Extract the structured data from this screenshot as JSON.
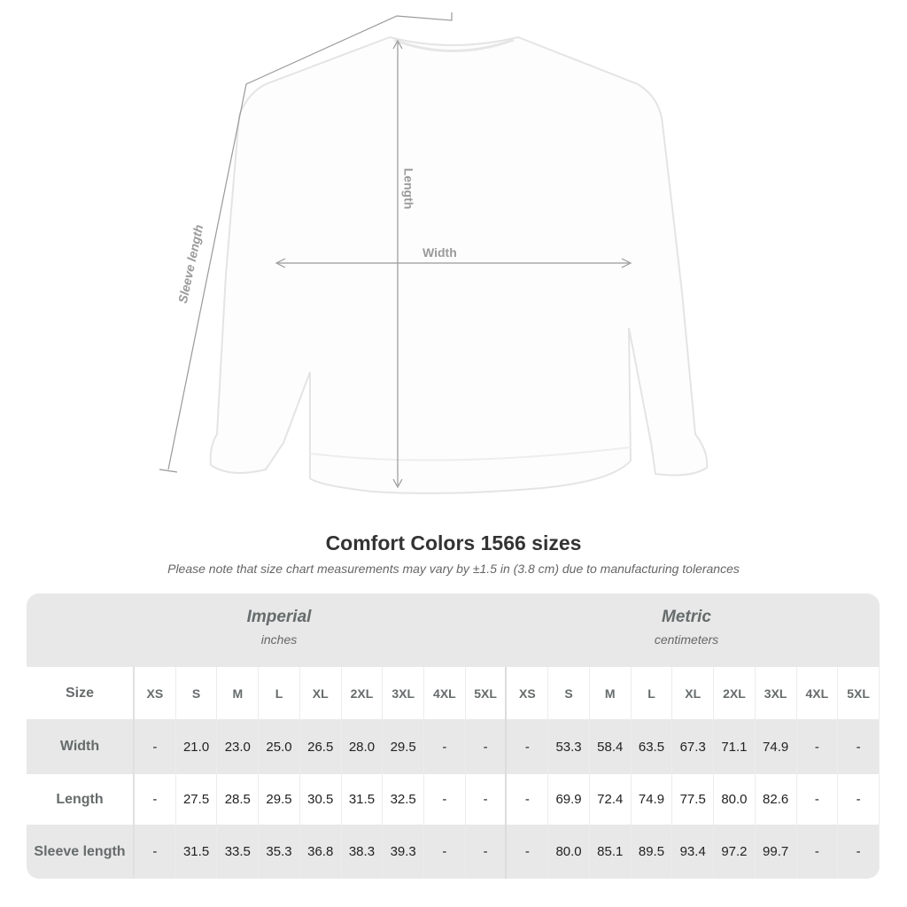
{
  "diagram": {
    "labels": {
      "length": "Length",
      "width": "Width",
      "sleeve": "Sleeve length"
    }
  },
  "title": "Comfort Colors 1566 sizes",
  "note": "Please note that size chart measurements may vary by ±1.5 in (3.8 cm) due to manufacturing tolerances",
  "table": {
    "imperial": {
      "heading": "Imperial",
      "unit": "inches"
    },
    "metric": {
      "heading": "Metric",
      "unit": "centimeters"
    },
    "size_label": "Size",
    "sizes": [
      "XS",
      "S",
      "M",
      "L",
      "XL",
      "2XL",
      "3XL",
      "4XL",
      "5XL"
    ],
    "rows": [
      {
        "label": "Width",
        "imperial": [
          "-",
          "21.0",
          "23.0",
          "25.0",
          "26.5",
          "28.0",
          "29.5",
          "-",
          "-"
        ],
        "metric": [
          "-",
          "53.3",
          "58.4",
          "63.5",
          "67.3",
          "71.1",
          "74.9",
          "-",
          "-"
        ]
      },
      {
        "label": "Length",
        "imperial": [
          "-",
          "27.5",
          "28.5",
          "29.5",
          "30.5",
          "31.5",
          "32.5",
          "-",
          "-"
        ],
        "metric": [
          "-",
          "69.9",
          "72.4",
          "74.9",
          "77.5",
          "80.0",
          "82.6",
          "-",
          "-"
        ]
      },
      {
        "label": "Sleeve length",
        "imperial": [
          "-",
          "31.5",
          "33.5",
          "35.3",
          "36.8",
          "38.3",
          "39.3",
          "-",
          "-"
        ],
        "metric": [
          "-",
          "80.0",
          "85.1",
          "89.5",
          "93.4",
          "97.2",
          "99.7",
          "-",
          "-"
        ]
      }
    ]
  }
}
